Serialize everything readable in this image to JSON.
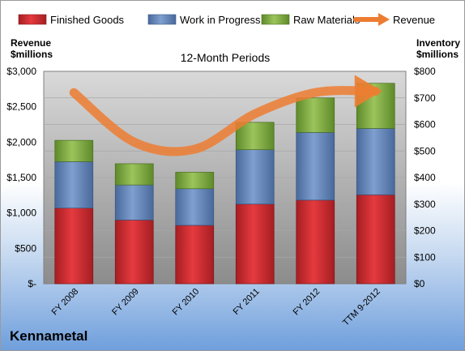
{
  "company": "Kennametal",
  "chart_data": {
    "type": "bar",
    "stacked": true,
    "title": "12-Month Periods",
    "categories": [
      "FY 2008",
      "FY 2009",
      "FY 2010",
      "FY 2011",
      "FY 2012",
      "TTM 9-2012"
    ],
    "series": [
      {
        "name": "Finished Goods",
        "axis": "right",
        "color": "#c0272d",
        "values": [
          285,
          240,
          220,
          300,
          315,
          335
        ]
      },
      {
        "name": "Work in Progress",
        "axis": "right",
        "color": "#5b7fb5",
        "values": [
          175,
          132,
          138,
          205,
          255,
          250
        ]
      },
      {
        "name": "Raw Materials",
        "axis": "right",
        "color": "#77a33b",
        "values": [
          80,
          80,
          62,
          103,
          130,
          170
        ]
      }
    ],
    "line_series": {
      "name": "Revenue",
      "axis": "left",
      "color": "#ed7d31",
      "values": [
        2700,
        2000,
        1900,
        2400,
        2700,
        2720
      ]
    },
    "left_axis": {
      "label_line1": "Revenue",
      "label_line2": "$millions",
      "ylim": [
        0,
        3000
      ],
      "ticks": [
        "$-",
        "$500",
        "$1,000",
        "$1,500",
        "$2,000",
        "$2,500",
        "$3,000"
      ]
    },
    "right_axis": {
      "label_line1": "Inventory",
      "label_line2": "$millions",
      "ylim": [
        0,
        800
      ],
      "ticks": [
        "$0",
        "$100",
        "$200",
        "$300",
        "$400",
        "$500",
        "$600",
        "$700",
        "$800"
      ]
    },
    "grid": true,
    "legend_position": "top"
  }
}
